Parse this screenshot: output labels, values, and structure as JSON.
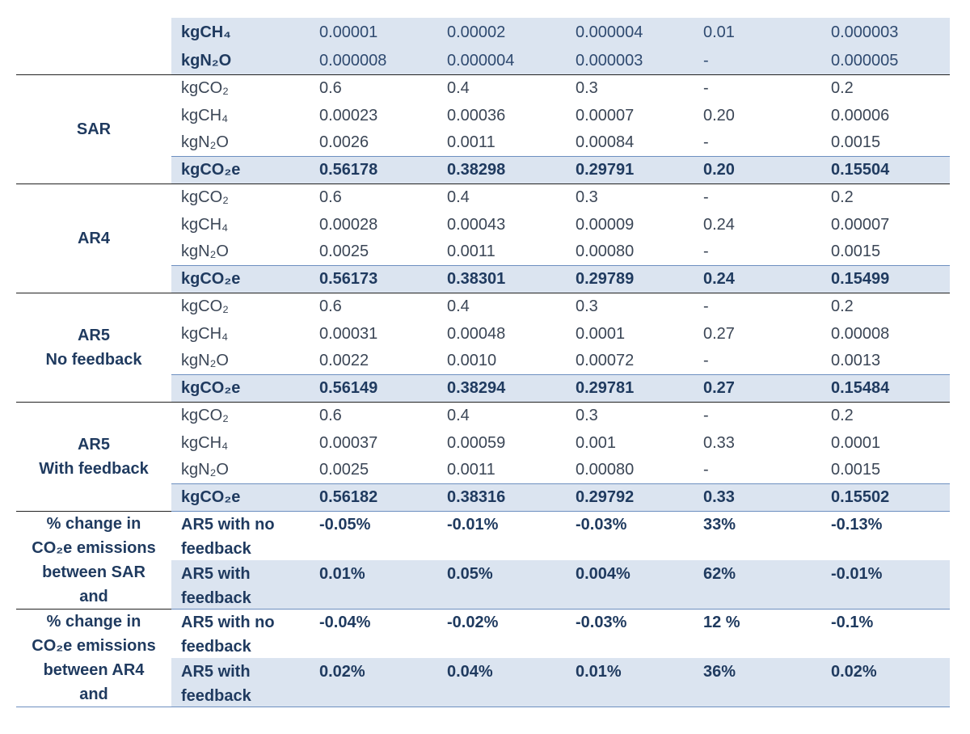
{
  "table": {
    "groups": [
      {
        "label": [],
        "rows": [
          {
            "unit": "kgCH₄",
            "values": [
              "0.00001",
              "0.00002",
              "0.000004",
              "0.01",
              "0.000003"
            ]
          },
          {
            "unit": "kgN₂O",
            "values": [
              "0.000008",
              "0.000004",
              "0.000003",
              "-",
              "0.000005"
            ]
          }
        ]
      },
      {
        "label": [
          "SAR"
        ],
        "rows": [
          {
            "unit": "kgCO₂",
            "values": [
              "0.6",
              "0.4",
              "0.3",
              "-",
              "0.2"
            ]
          },
          {
            "unit": "kgCH₄",
            "values": [
              "0.00023",
              "0.00036",
              "0.00007",
              "0.20",
              "0.00006"
            ]
          },
          {
            "unit": "kgN₂O",
            "values": [
              "0.0026",
              "0.0011",
              "0.00084",
              "-",
              "0.0015"
            ]
          },
          {
            "unit": "kgCO₂e",
            "values": [
              "0.56178",
              "0.38298",
              "0.29791",
              "0.20",
              "0.15504"
            ]
          }
        ]
      },
      {
        "label": [
          "AR4"
        ],
        "rows": [
          {
            "unit": "kgCO₂",
            "values": [
              "0.6",
              "0.4",
              "0.3",
              "-",
              "0.2"
            ]
          },
          {
            "unit": "kgCH₄",
            "values": [
              "0.00028",
              "0.00043",
              "0.00009",
              "0.24",
              "0.00007"
            ]
          },
          {
            "unit": "kgN₂O",
            "values": [
              "0.0025",
              "0.0011",
              "0.00080",
              "-",
              "0.0015"
            ]
          },
          {
            "unit": "kgCO₂e",
            "values": [
              "0.56173",
              "0.38301",
              "0.29789",
              "0.24",
              "0.15499"
            ]
          }
        ]
      },
      {
        "label": [
          "AR5",
          "No feedback"
        ],
        "rows": [
          {
            "unit": "kgCO₂",
            "values": [
              "0.6",
              "0.4",
              "0.3",
              "-",
              "0.2"
            ]
          },
          {
            "unit": "kgCH₄",
            "values": [
              "0.00031",
              "0.00048",
              "0.0001",
              "0.27",
              "0.00008"
            ]
          },
          {
            "unit": "kgN₂O",
            "values": [
              "0.0022",
              "0.0010",
              "0.00072",
              "-",
              "0.0013"
            ]
          },
          {
            "unit": "kgCO₂e",
            "values": [
              "0.56149",
              "0.38294",
              "0.29781",
              "0.27",
              "0.15484"
            ]
          }
        ]
      },
      {
        "label": [
          "AR5",
          "With feedback"
        ],
        "rows": [
          {
            "unit": "kgCO₂",
            "values": [
              "0.6",
              "0.4",
              "0.3",
              "-",
              "0.2"
            ]
          },
          {
            "unit": "kgCH₄",
            "values": [
              "0.00037",
              "0.00059",
              "0.001",
              "0.33",
              "0.0001"
            ]
          },
          {
            "unit": "kgN₂O",
            "values": [
              "0.0025",
              "0.0011",
              "0.00080",
              "-",
              "0.0015"
            ]
          },
          {
            "unit": "kgCO₂e",
            "values": [
              "0.56182",
              "0.38316",
              "0.29792",
              "0.33",
              "0.15502"
            ]
          }
        ]
      },
      {
        "label": [
          "% change in",
          "CO₂e emissions",
          "between SAR",
          "and"
        ],
        "rows": [
          {
            "unit": "AR5 with no feedback",
            "values": [
              "-0.05%",
              "-0.01%",
              "-0.03%",
              "33%",
              "-0.13%"
            ]
          },
          {
            "unit": "AR5 with feedback",
            "values": [
              "0.01%",
              "0.05%",
              "0.004%",
              "62%",
              "-0.01%"
            ]
          }
        ]
      },
      {
        "label": [
          "% change in",
          "CO₂e emissions",
          "between AR4",
          "and"
        ],
        "rows": [
          {
            "unit": "AR5 with no feedback",
            "values": [
              "-0.04%",
              "-0.02%",
              "-0.03%",
              "12 %",
              "-0.1%"
            ]
          },
          {
            "unit": "AR5 with feedback",
            "values": [
              "0.02%",
              "0.04%",
              "0.01%",
              "36%",
              "0.02%"
            ]
          }
        ]
      }
    ]
  }
}
